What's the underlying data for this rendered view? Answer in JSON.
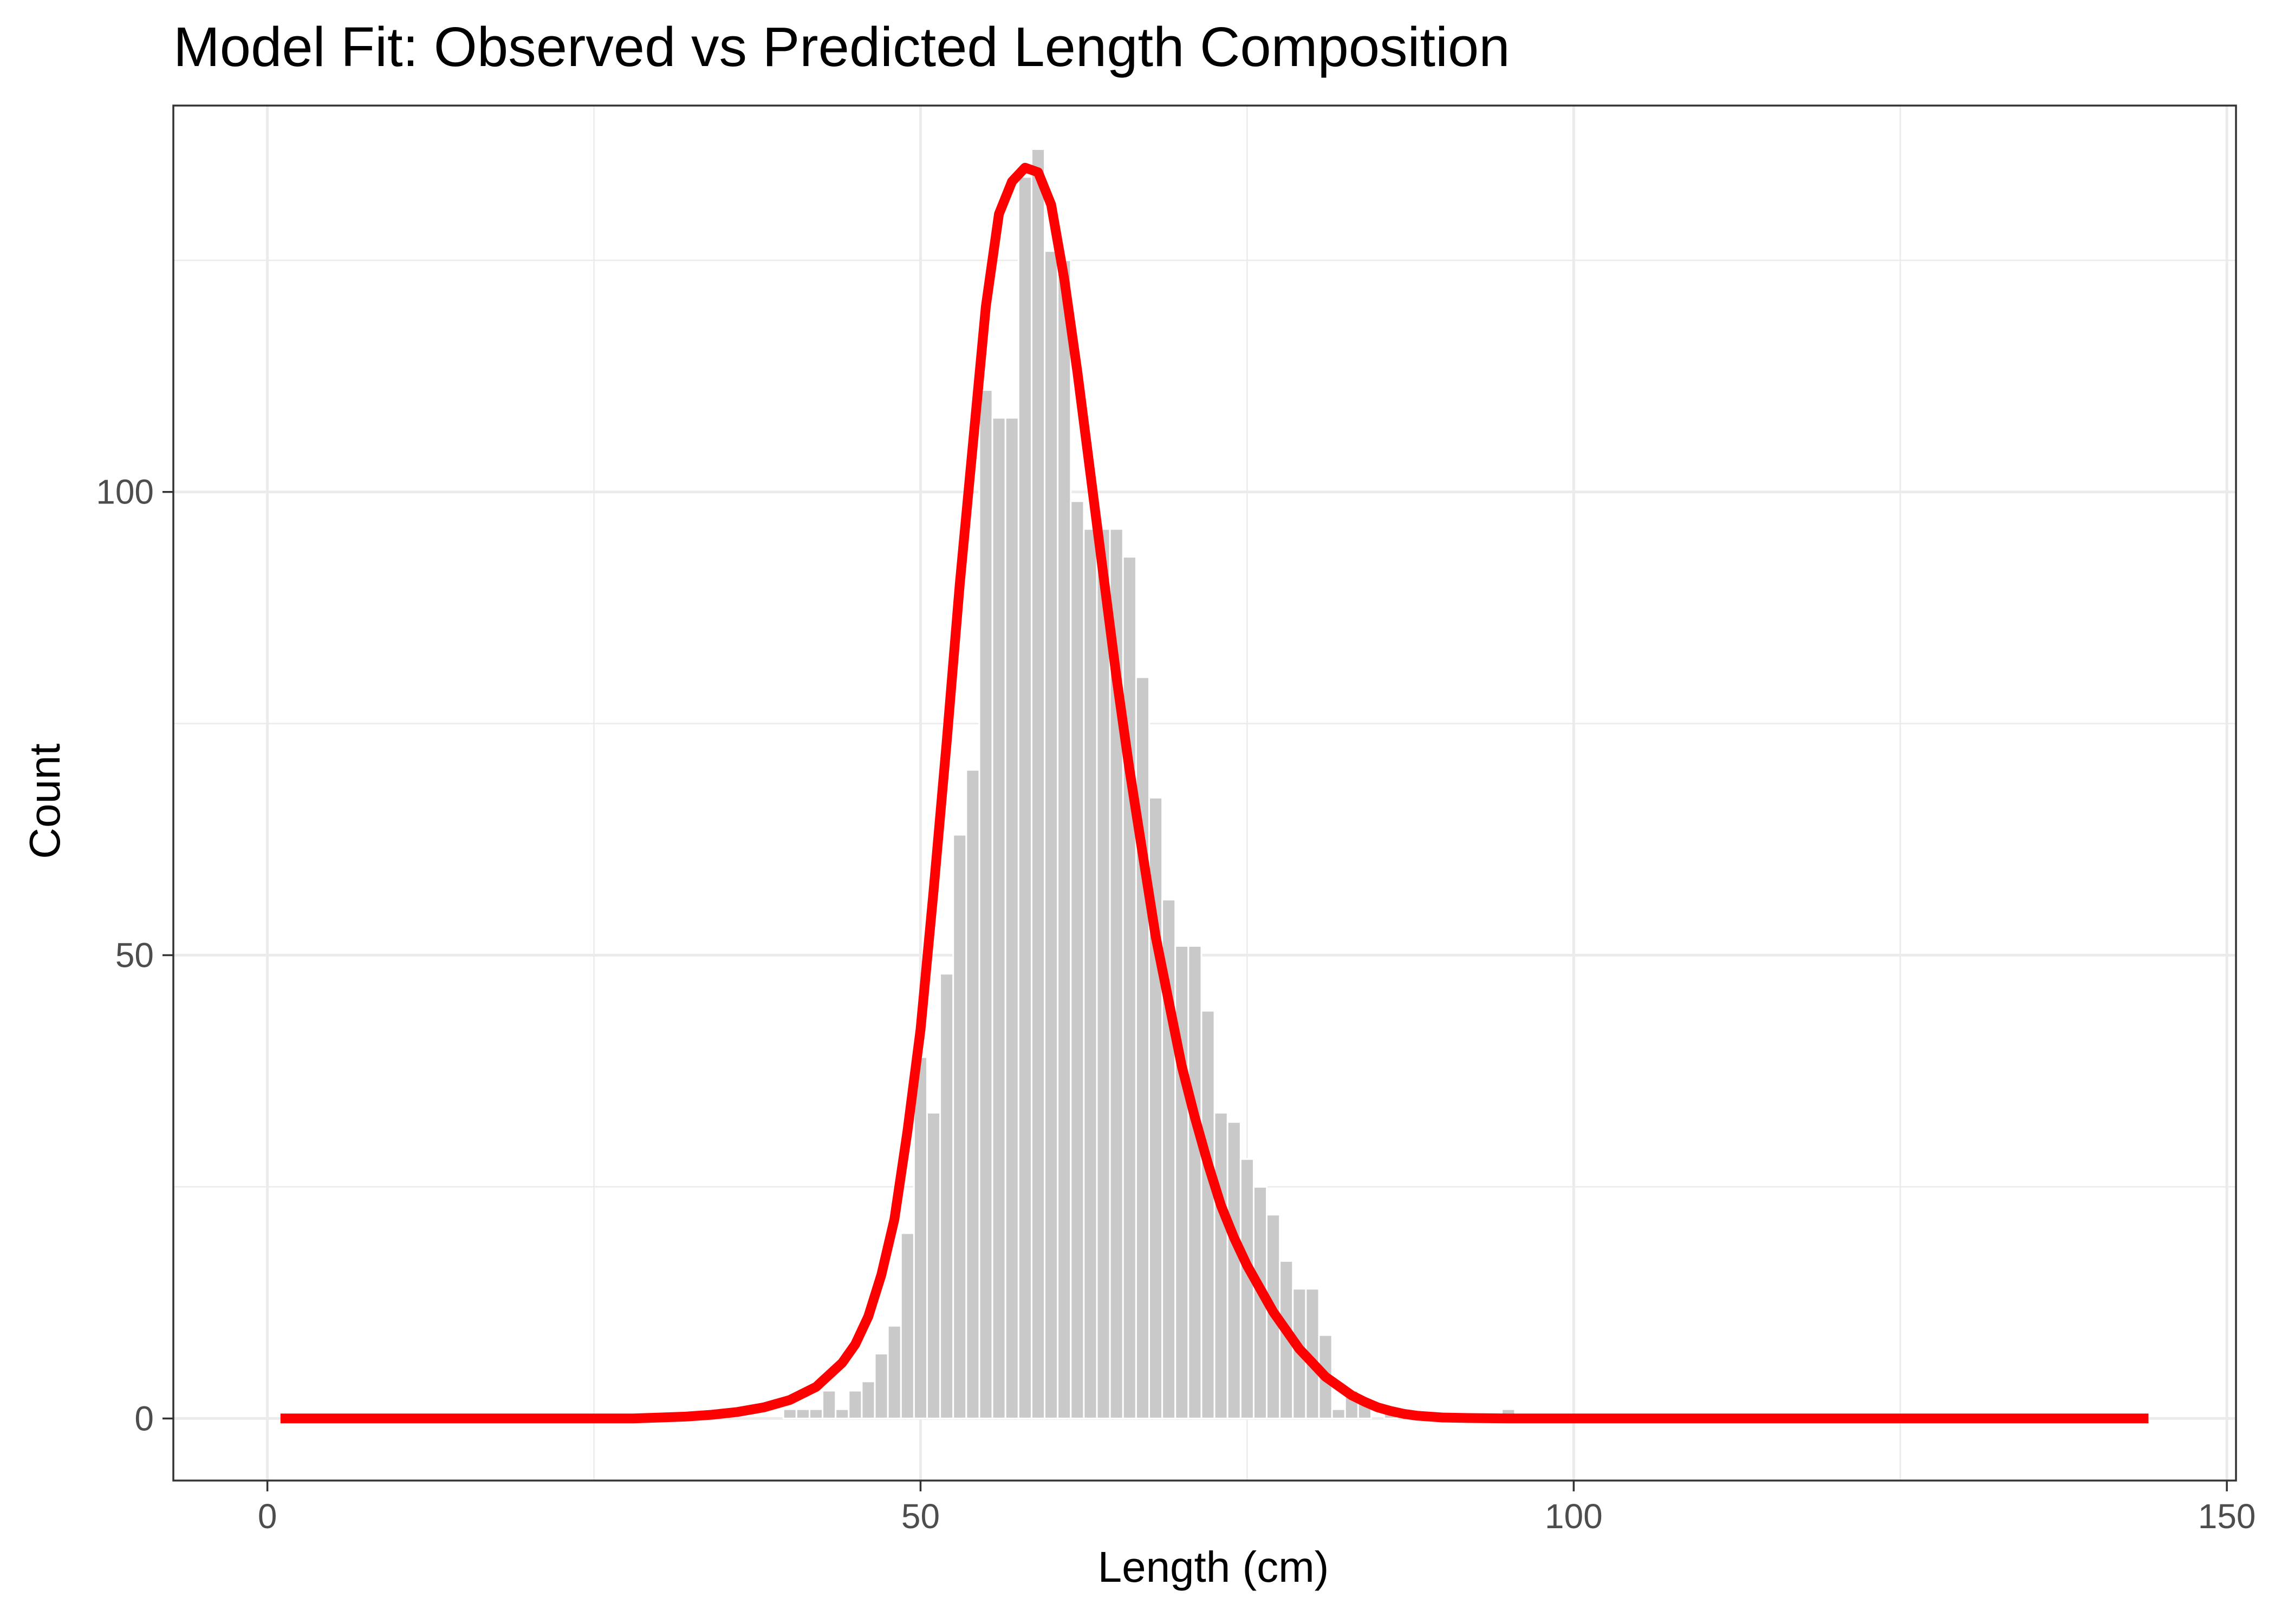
{
  "chart_data": {
    "type": "bar",
    "title": "Model Fit: Observed vs Predicted Length Composition",
    "xlabel": "Length (cm)",
    "ylabel": "Count",
    "xlim": [
      -7.2,
      150.7
    ],
    "ylim": [
      -6.7,
      141.7
    ],
    "x_ticks": [
      0,
      50,
      100,
      150
    ],
    "x_tick_labels": [
      "0",
      "50",
      "100",
      "150"
    ],
    "y_ticks": [
      0,
      50,
      100
    ],
    "y_tick_labels": [
      "0",
      "50",
      "100"
    ],
    "y_minor_ticks": [
      25,
      75,
      125
    ],
    "x_minor_ticks": [
      25,
      75,
      125
    ],
    "grid": true,
    "legend": "none",
    "colors": {
      "bars": "#c9c9c9",
      "bar_outline": "#ffffff",
      "fit_line": "#ff0000"
    },
    "observed": {
      "x": [
        40,
        41,
        42,
        43,
        44,
        45,
        46,
        47,
        48,
        49,
        50,
        51,
        52,
        53,
        54,
        55,
        56,
        57,
        58,
        59,
        60,
        61,
        62,
        63,
        64,
        65,
        66,
        67,
        68,
        69,
        70,
        71,
        72,
        73,
        74,
        75,
        76,
        77,
        78,
        79,
        80,
        81,
        82,
        83,
        84,
        85,
        86,
        87,
        88,
        89,
        90,
        91,
        92,
        93,
        94,
        95,
        96
      ],
      "values": [
        1,
        1,
        1,
        3,
        1,
        3,
        4,
        7,
        10,
        20,
        39,
        33,
        48,
        63,
        70,
        111,
        108,
        108,
        134,
        137,
        126,
        125,
        99,
        96,
        96,
        96,
        93,
        80,
        67,
        56,
        51,
        51,
        44,
        33,
        32,
        28,
        25,
        22,
        17,
        14,
        14,
        9,
        1,
        3,
        2,
        0,
        1,
        0,
        0,
        0,
        0,
        0,
        0,
        0,
        0,
        1,
        0
      ]
    },
    "predicted": {
      "x": [
        1,
        5,
        10,
        15,
        20,
        25,
        28,
        30,
        32,
        34,
        36,
        38,
        40,
        42,
        44,
        45,
        46,
        47,
        48,
        49,
        50,
        51,
        52,
        53,
        54,
        55,
        56,
        57,
        58,
        59,
        60,
        61,
        62,
        63,
        64,
        65,
        66,
        67,
        68,
        69,
        70,
        71,
        72,
        73,
        74,
        75,
        76,
        77,
        78,
        79,
        80,
        81,
        82,
        83,
        84,
        85,
        86,
        87,
        88,
        90,
        92,
        95,
        100,
        105,
        110,
        120,
        130,
        144
      ],
      "values": [
        0,
        0,
        0,
        0,
        0,
        0,
        0,
        0.1,
        0.2,
        0.4,
        0.7,
        1.2,
        2,
        3.4,
        6,
        8,
        11,
        15.5,
        21.5,
        31,
        42,
        57,
        73,
        90,
        105,
        120,
        130,
        133.5,
        135,
        134.5,
        131,
        123,
        113,
        102,
        91,
        80,
        70,
        61,
        52,
        45,
        38,
        32.5,
        27.5,
        23,
        19.5,
        16.5,
        14,
        11.5,
        9.5,
        7.5,
        6,
        4.5,
        3.5,
        2.5,
        1.8,
        1.2,
        0.8,
        0.5,
        0.3,
        0.1,
        0.05,
        0,
        0,
        0,
        0,
        0,
        0,
        0
      ]
    }
  }
}
